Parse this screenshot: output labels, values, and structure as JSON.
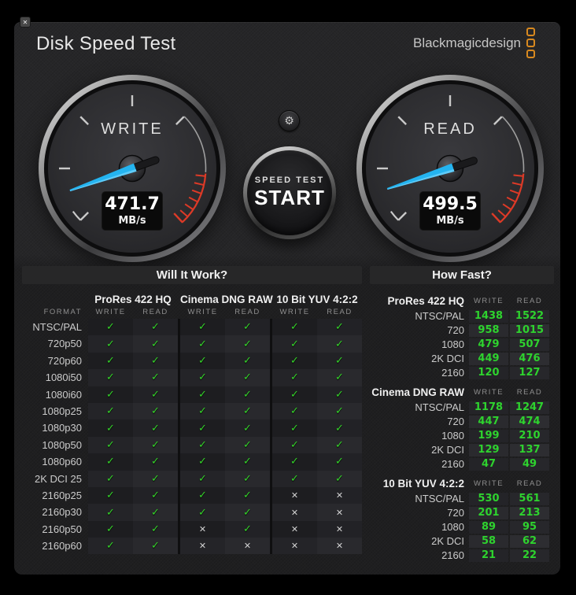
{
  "window": {
    "title": "Disk Speed Test",
    "brand": "Blackmagicdesign",
    "close_glyph": "✕"
  },
  "icons": {
    "gear": "⚙",
    "check": "✓",
    "cross": "✕"
  },
  "colors": {
    "needle_blue": "#24b4f0",
    "red_zone": "#dd3a27",
    "accent_green": "#2ed32e",
    "brand_orange": "#d8891f"
  },
  "gauges": {
    "write": {
      "label": "WRITE",
      "value": "471.7",
      "unit": "MB/s"
    },
    "read": {
      "label": "READ",
      "value": "499.5",
      "unit": "MB/s"
    }
  },
  "start_button": {
    "line1": "SPEED TEST",
    "line2": "START"
  },
  "will_it_work": {
    "title": "Will It Work?",
    "format_header": "FORMAT",
    "groups": [
      "ProRes 422 HQ",
      "Cinema DNG RAW",
      "10 Bit YUV 4:2:2"
    ],
    "sub_headers": [
      "WRITE",
      "READ"
    ],
    "rows": [
      {
        "format": "NTSC/PAL",
        "results": [
          true,
          true,
          true,
          true,
          true,
          true
        ]
      },
      {
        "format": "720p50",
        "results": [
          true,
          true,
          true,
          true,
          true,
          true
        ]
      },
      {
        "format": "720p60",
        "results": [
          true,
          true,
          true,
          true,
          true,
          true
        ]
      },
      {
        "format": "1080i50",
        "results": [
          true,
          true,
          true,
          true,
          true,
          true
        ]
      },
      {
        "format": "1080i60",
        "results": [
          true,
          true,
          true,
          true,
          true,
          true
        ]
      },
      {
        "format": "1080p25",
        "results": [
          true,
          true,
          true,
          true,
          true,
          true
        ]
      },
      {
        "format": "1080p30",
        "results": [
          true,
          true,
          true,
          true,
          true,
          true
        ]
      },
      {
        "format": "1080p50",
        "results": [
          true,
          true,
          true,
          true,
          true,
          true
        ]
      },
      {
        "format": "1080p60",
        "results": [
          true,
          true,
          true,
          true,
          true,
          true
        ]
      },
      {
        "format": "2K DCI 25",
        "results": [
          true,
          true,
          true,
          true,
          true,
          true
        ]
      },
      {
        "format": "2160p25",
        "results": [
          true,
          true,
          true,
          true,
          false,
          false
        ]
      },
      {
        "format": "2160p30",
        "results": [
          true,
          true,
          true,
          true,
          false,
          false
        ]
      },
      {
        "format": "2160p50",
        "results": [
          true,
          true,
          false,
          true,
          false,
          false
        ]
      },
      {
        "format": "2160p60",
        "results": [
          true,
          true,
          false,
          false,
          false,
          false
        ]
      }
    ]
  },
  "how_fast": {
    "title": "How Fast?",
    "sub_headers": [
      "WRITE",
      "READ"
    ],
    "groups": [
      {
        "name": "ProRes 422 HQ",
        "rows": [
          {
            "label": "NTSC/PAL",
            "write": "1438",
            "read": "1522"
          },
          {
            "label": "720",
            "write": "958",
            "read": "1015"
          },
          {
            "label": "1080",
            "write": "479",
            "read": "507"
          },
          {
            "label": "2K DCI",
            "write": "449",
            "read": "476"
          },
          {
            "label": "2160",
            "write": "120",
            "read": "127"
          }
        ]
      },
      {
        "name": "Cinema DNG RAW",
        "rows": [
          {
            "label": "NTSC/PAL",
            "write": "1178",
            "read": "1247"
          },
          {
            "label": "720",
            "write": "447",
            "read": "474"
          },
          {
            "label": "1080",
            "write": "199",
            "read": "210"
          },
          {
            "label": "2K DCI",
            "write": "129",
            "read": "137"
          },
          {
            "label": "2160",
            "write": "47",
            "read": "49"
          }
        ]
      },
      {
        "name": "10 Bit YUV 4:2:2",
        "rows": [
          {
            "label": "NTSC/PAL",
            "write": "530",
            "read": "561"
          },
          {
            "label": "720",
            "write": "201",
            "read": "213"
          },
          {
            "label": "1080",
            "write": "89",
            "read": "95"
          },
          {
            "label": "2K DCI",
            "write": "58",
            "read": "62"
          },
          {
            "label": "2160",
            "write": "21",
            "read": "22"
          }
        ]
      }
    ]
  }
}
